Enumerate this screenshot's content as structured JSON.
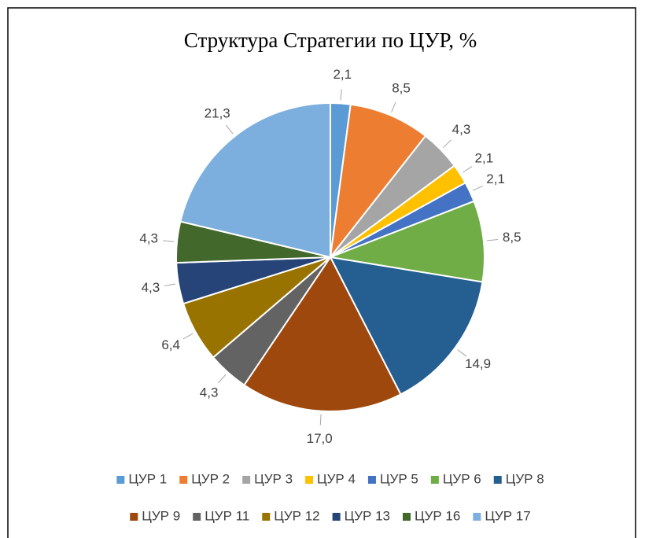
{
  "chart_data": {
    "type": "pie",
    "title": "Структура Стратегии по ЦУР, %",
    "categories": [
      "ЦУР 1",
      "ЦУР 2",
      "ЦУР 3",
      "ЦУР 4",
      "ЦУР 5",
      "ЦУР 6",
      "ЦУР 8",
      "ЦУР 9",
      "ЦУР 11",
      "ЦУР 12",
      "ЦУР 13",
      "ЦУР 16",
      "ЦУР 17"
    ],
    "values": [
      2.1,
      8.5,
      4.3,
      2.1,
      2.1,
      8.5,
      14.9,
      17.0,
      4.3,
      6.4,
      4.3,
      4.3,
      21.3
    ],
    "value_labels": [
      "2,1",
      "8,5",
      "4,3",
      "2,1",
      "2,1",
      "8,5",
      "14,9",
      "17,0",
      "4,3",
      "6,4",
      "4,3",
      "4,3",
      "21,3"
    ],
    "colors": [
      "#5b9bd5",
      "#ed7d31",
      "#a5a5a5",
      "#ffc000",
      "#4472c4",
      "#70ad47",
      "#255e91",
      "#9e480e",
      "#636363",
      "#997300",
      "#264478",
      "#43682b",
      "#7cafdd"
    ],
    "legend": "bottom"
  }
}
